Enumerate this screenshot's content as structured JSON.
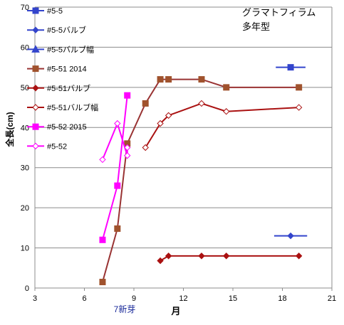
{
  "chart_data": {
    "type": "line",
    "title_lines": [
      "グラマトフィラム",
      "多年型"
    ],
    "xlabel": "月",
    "ylabel": "全長(cm)",
    "xlim": [
      3,
      21
    ],
    "ylim": [
      0,
      70
    ],
    "xticks": [
      3,
      6,
      9,
      12,
      15,
      18,
      21
    ],
    "yticks": [
      0,
      10,
      20,
      30,
      40,
      50,
      60,
      70
    ],
    "annotation": {
      "text": "7新芽",
      "x": 8.5
    },
    "grid": true,
    "legend_position": "top-left",
    "series": [
      {
        "name": "#5-5",
        "color": "#3344cc",
        "marker": "square",
        "filled": true,
        "x": [
          18.5
        ],
        "y": [
          55
        ],
        "xerr": [
          0.9
        ]
      },
      {
        "name": "#5-5バルブ",
        "color": "#3344cc",
        "marker": "diamond",
        "filled": true,
        "x": [
          18.5
        ],
        "y": [
          13
        ],
        "xerr": [
          1.0
        ]
      },
      {
        "name": "#5-5バルブ幅",
        "color": "#3344cc",
        "marker": "triangle",
        "filled": true,
        "x": [],
        "y": []
      },
      {
        "name": "#5-51 2014",
        "color": "#a0522d",
        "line_color": "#993333",
        "marker": "square",
        "filled": true,
        "x": [
          7.1,
          8.0,
          8.6,
          9.7,
          10.6,
          11.1,
          13.1,
          14.6,
          19.0
        ],
        "y": [
          1.5,
          14.8,
          36,
          46,
          52,
          52,
          52,
          50,
          50
        ]
      },
      {
        "name": "#5-51バルブ",
        "color": "#aa1111",
        "marker": "diamond",
        "filled": true,
        "x": [
          10.6,
          11.1,
          13.1,
          14.6,
          19.0
        ],
        "y": [
          6.8,
          8,
          8,
          8,
          8
        ]
      },
      {
        "name": "#5-51バルブ幅",
        "color": "#aa1111",
        "marker": "diamond",
        "filled": false,
        "x": [
          9.7,
          10.6,
          11.1,
          13.1,
          14.6,
          19.0
        ],
        "y": [
          35,
          41,
          43,
          46,
          44,
          45
        ]
      },
      {
        "name": "#5-52 2015",
        "color": "#ff00ff",
        "marker": "square",
        "filled": true,
        "x": [
          7.1,
          8.0,
          8.6
        ],
        "y": [
          12,
          25.5,
          48
        ]
      },
      {
        "name": "#5-52",
        "color": "#ff00ff",
        "marker": "diamond",
        "filled": false,
        "x": [
          7.1,
          8.0,
          8.6,
          8.6
        ],
        "y": [
          32,
          41,
          33,
          35
        ]
      }
    ]
  }
}
